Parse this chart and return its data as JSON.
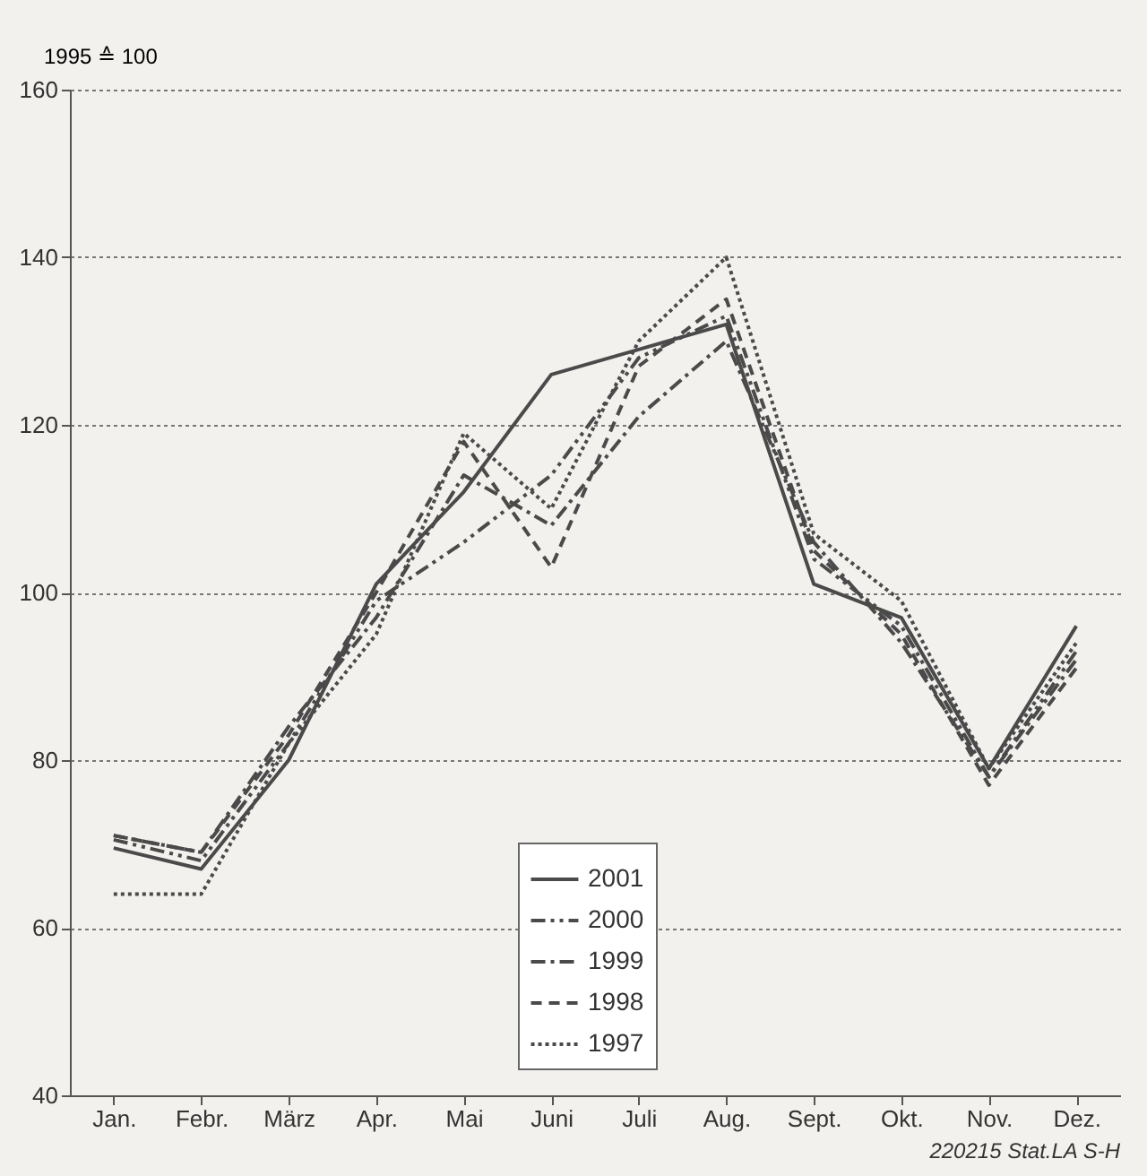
{
  "chart_data": {
    "type": "line",
    "ylabel": "1995 ≙ 100",
    "categories": [
      "Jan.",
      "Febr.",
      "März",
      "Apr.",
      "Mai",
      "Juni",
      "Juli",
      "Aug.",
      "Sept.",
      "Okt.",
      "Nov.",
      "Dez."
    ],
    "series": [
      {
        "name": "2001",
        "color": "#4a4a4a",
        "line_style": "solid",
        "values": [
          69.5,
          67,
          80,
          101,
          112,
          126,
          129,
          132,
          101,
          97,
          79,
          96
        ]
      },
      {
        "name": "2000",
        "color": "#4a4a4a",
        "line_style": "dashdotdot",
        "values": [
          70.5,
          68,
          82,
          99,
          106,
          114,
          128,
          133,
          104,
          96,
          78,
          93
        ]
      },
      {
        "name": "1999",
        "color": "#4a4a4a",
        "line_style": "dashdot",
        "values": [
          71,
          69,
          84,
          97,
          114,
          108,
          121,
          130,
          106,
          94,
          78,
          92
        ]
      },
      {
        "name": "1998",
        "color": "#4a4a4a",
        "line_style": "dashed",
        "values": [
          71,
          69,
          83,
          100,
          118,
          103,
          127,
          135,
          105,
          95,
          77,
          91
        ]
      },
      {
        "name": "1997",
        "color": "#4a4a4a",
        "line_style": "dotted",
        "values": [
          64,
          64,
          82,
          95,
          119,
          110,
          130,
          140,
          107,
          99,
          79,
          94
        ]
      }
    ],
    "ylim": [
      40,
      160
    ],
    "yticks": [
      40,
      60,
      80,
      100,
      120,
      140,
      160
    ],
    "grid": "y",
    "legend": "bottom",
    "annotations": [
      "220215 Stat.LA S-H"
    ]
  }
}
